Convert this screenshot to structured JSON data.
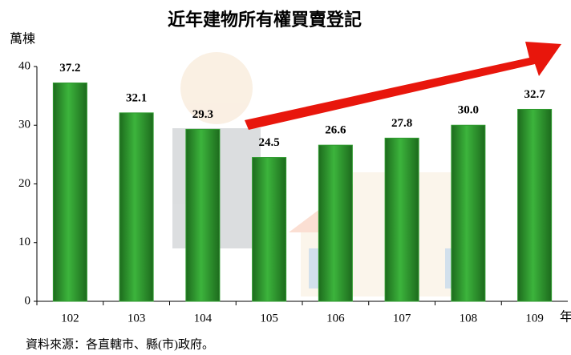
{
  "chart_data": {
    "type": "bar",
    "title": "近年建物所有權買賣登記",
    "y_label": "萬棟",
    "x_label": "年",
    "source": "資料來源：各直轄市、縣(市)政府。",
    "categories": [
      "102",
      "103",
      "104",
      "105",
      "106",
      "107",
      "108",
      "109"
    ],
    "values": [
      37.2,
      32.1,
      29.3,
      24.5,
      26.6,
      27.8,
      30.0,
      32.7
    ],
    "value_labels": [
      "37.2",
      "32.1",
      "29.3",
      "24.5",
      "26.6",
      "27.8",
      "30.0",
      "32.7"
    ],
    "color": "#2e9a2e",
    "ylim": [
      0,
      40
    ],
    "yticks": [
      0,
      10,
      20,
      30,
      40
    ]
  }
}
